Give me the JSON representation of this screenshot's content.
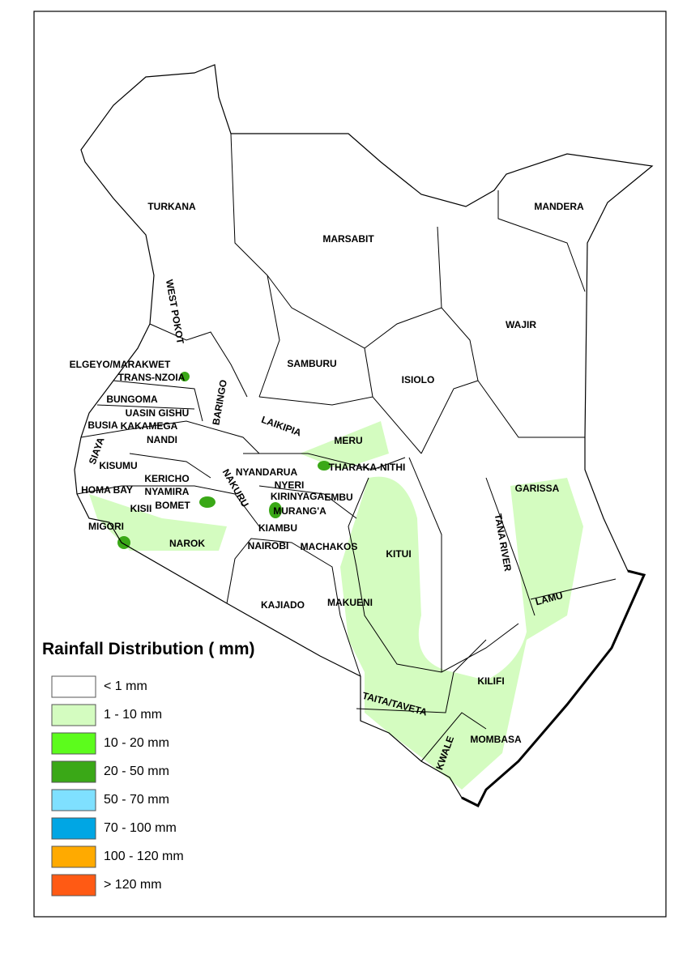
{
  "map": {
    "counties": [
      "TURKANA",
      "MARSABIT",
      "MANDERA",
      "WAJIR",
      "WEST POKOT",
      "SAMBURU",
      "ISIOLO",
      "ELGEYO/MARAKWET",
      "TRANS-NZOIA",
      "BARINGO",
      "BUNGOMA",
      "UASIN GISHU",
      "BUSIA",
      "KAKAMEGA",
      "NANDI",
      "LAIKIPIA",
      "MERU",
      "SIAYA",
      "KISUMU",
      "KERICHO",
      "NYANDARUA",
      "THARAKA-NITHI",
      "HOMA BAY",
      "NYAMIRA",
      "NAKURU",
      "NYERI",
      "KIRINYAGA",
      "EMBU",
      "GARISSA",
      "KISII",
      "BOMET",
      "MURANG'A",
      "MIGORI",
      "KIAMBU",
      "NAROK",
      "NAIROBI",
      "MACHAKOS",
      "KITUI",
      "TANA RIVER",
      "LAMU",
      "KAJIADO",
      "MAKUENI",
      "KILIFI",
      "TAITA/TAVETA",
      "MOMBASA",
      "KWALE"
    ]
  },
  "legend": {
    "title": "Rainfall Distribution ( mm)",
    "items": [
      {
        "label": "< 1 mm",
        "color": "#ffffff"
      },
      {
        "label": "1 - 10 mm",
        "color": "#d4fcc0"
      },
      {
        "label": "10 - 20 mm",
        "color": "#5cfc1c"
      },
      {
        "label": "20 - 50 mm",
        "color": "#3aa817"
      },
      {
        "label": "50 - 70 mm",
        "color": "#7fe0ff"
      },
      {
        "label": "70 - 100 mm",
        "color": "#00a6e4"
      },
      {
        "label": "100 - 120 mm",
        "color": "#ffaa00"
      },
      {
        "label": "> 120 mm",
        "color": "#ff5a14"
      }
    ]
  }
}
